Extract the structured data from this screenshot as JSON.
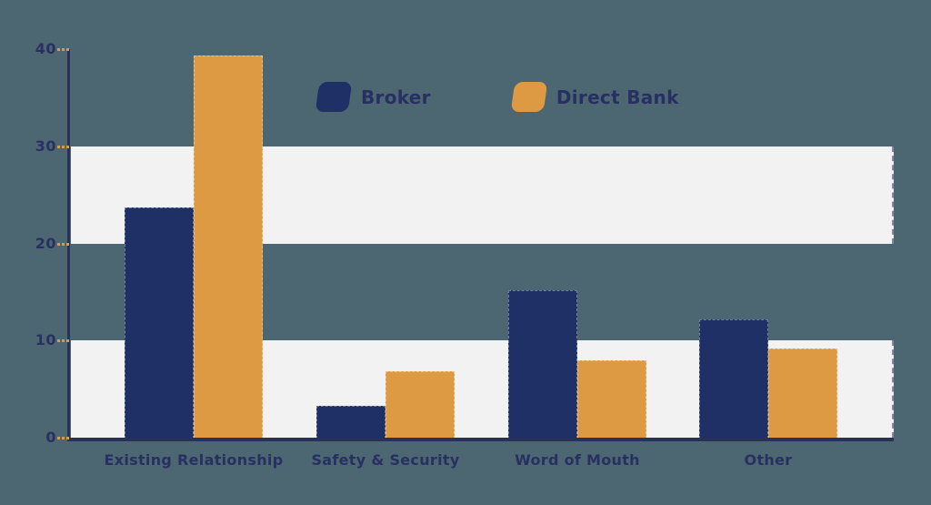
{
  "chart_data": {
    "type": "bar",
    "title": "",
    "xlabel": "",
    "ylabel": "",
    "categories": [
      "Existing Relationship",
      "Safety & Security",
      "Word of Mouth",
      "Other"
    ],
    "series": [
      {
        "name": "Broker",
        "color": "#1f3066",
        "values": [
          23.7,
          3.3,
          15.2,
          12.2
        ]
      },
      {
        "name": "Direct Bank",
        "color": "#dd9a43",
        "values": [
          39.3,
          6.8,
          8.0,
          9.2
        ]
      }
    ],
    "ylim": [
      0,
      40
    ],
    "yticks": [
      0,
      10,
      20,
      30,
      40
    ],
    "background_bands": [
      [
        0,
        10
      ],
      [
        20,
        30
      ]
    ],
    "legend_position": "top-center",
    "grid": false
  },
  "colors": {
    "background": "#4c6771",
    "band": "#f2f2f3",
    "axis": "#2a3158",
    "text": "#283061",
    "tick_mark": "#dd9a43"
  }
}
